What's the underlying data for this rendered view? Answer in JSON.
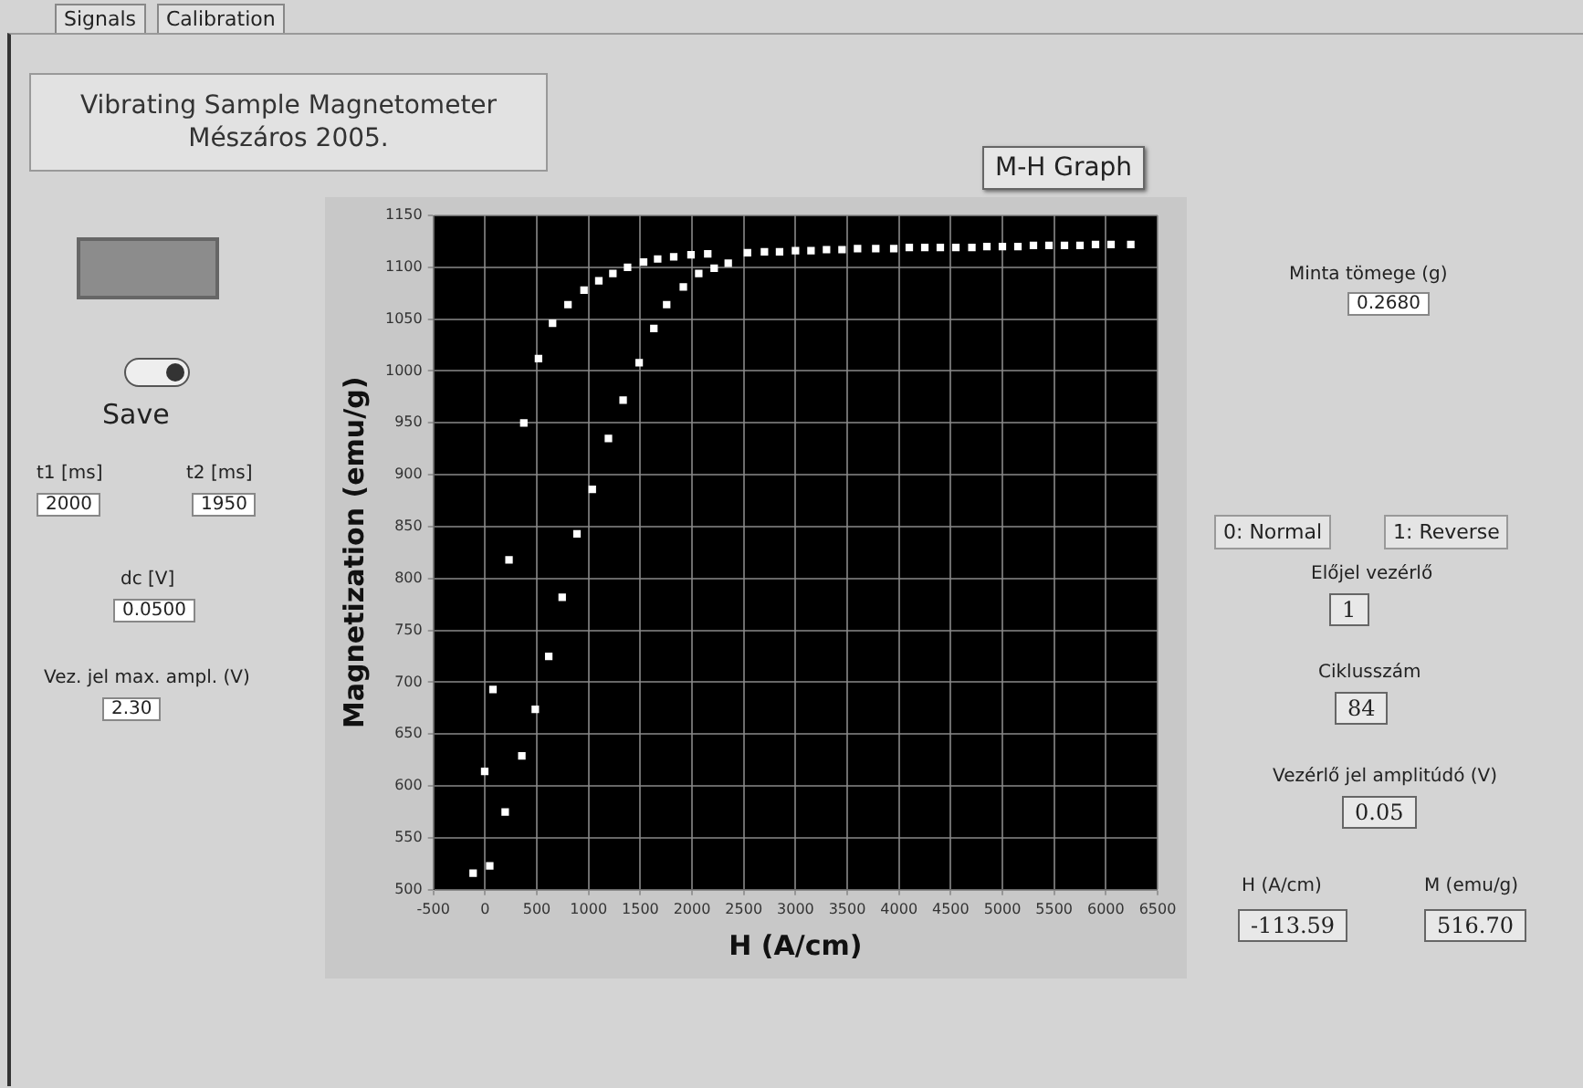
{
  "chart_data": {
    "type": "scatter",
    "title": "Vibrating Sample Magnetometer\nMészáros 2005.",
    "xlabel": "H (A/cm)",
    "ylabel": "Magnetization (emu/g)",
    "x": [
      -116,
      45,
      -4,
      194,
      76,
      355,
      231,
      485,
      615,
      374,
      745,
      516,
      888,
      652,
      1036,
      801,
      1192,
      956,
      1334,
      1099,
      1489,
      1235,
      1631,
      1377,
      1755,
      1532,
      1916,
      1668,
      2065,
      1823,
      2214,
      1990,
      2350,
      2152,
      2536,
      2700,
      2846,
      3000,
      3150,
      3300,
      3450,
      3600,
      3776,
      3950,
      4100,
      4250,
      4400,
      4550,
      4705,
      4850,
      5000,
      5150,
      5300,
      5450,
      5600,
      5750,
      5900,
      6050,
      6241
    ],
    "values": [
      516,
      523,
      614,
      575,
      693,
      629,
      818,
      674,
      725,
      950,
      782,
      1012,
      843,
      1046,
      886,
      1064,
      935,
      1078,
      972,
      1087,
      1008,
      1094,
      1041,
      1100,
      1064,
      1105,
      1081,
      1108,
      1094,
      1110,
      1099,
      1112,
      1104,
      1113,
      1114,
      1115,
      1115,
      1116,
      1116,
      1117,
      1117,
      1118,
      1118,
      1118,
      1119,
      1119,
      1119,
      1119,
      1119,
      1120,
      1120,
      1120,
      1121,
      1121,
      1121,
      1121,
      1122,
      1122,
      1122
    ],
    "color": "#ffffff",
    "marker": "square",
    "xlim": [
      -500,
      6500
    ],
    "xticks": [
      -500,
      0,
      500,
      1000,
      1500,
      2000,
      2500,
      3000,
      3500,
      4000,
      4500,
      5000,
      5500,
      6000,
      6500
    ],
    "ylim": [
      500,
      1150
    ],
    "yticks": [
      500,
      550,
      600,
      650,
      700,
      750,
      800,
      850,
      900,
      950,
      1000,
      1050,
      1100,
      1150
    ],
    "grid": true,
    "annotations": [
      "Signals",
      "Calibration",
      "M-H Graph",
      "Save",
      "t1 [ms]",
      "2000",
      "t2 [ms]",
      "1950",
      "dc [V]",
      "0.0500",
      "Vez. jel max. ampl. (V)",
      "2.30",
      "Minta tömege (g)",
      "0.2680",
      "0: Normal",
      "1: Reverse",
      "Előjel vezérlő",
      "1",
      "Ciklusszám",
      "84",
      "Vezérlő jel amplitúdó (V)",
      "0.05",
      "H (A/cm)",
      "-113.59",
      "M (emu/g)",
      "516.70"
    ]
  }
}
